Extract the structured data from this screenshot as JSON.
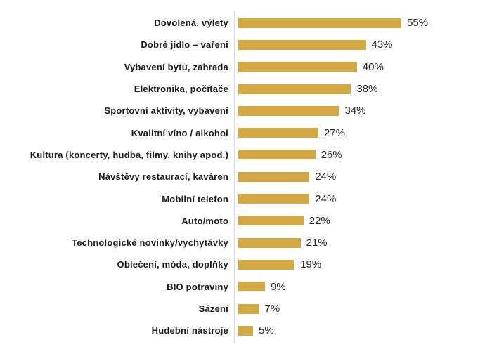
{
  "chart_data": {
    "type": "bar",
    "orientation": "horizontal",
    "title": "",
    "xlabel": "",
    "ylabel": "",
    "grid": false,
    "legend": false,
    "xlim": [
      0,
      60
    ],
    "categories": [
      "Dovolená, výlety",
      "Dobré jídlo – vaření",
      "Vybavení bytu, zahrada",
      "Elektronika, počítače",
      "Sportovní aktivity, vybavení",
      "Kvalitní víno / alkohol",
      "Kultura (koncerty, hudba, filmy, knihy apod.)",
      "Návštěvy restaurací, kaváren",
      "Mobilní telefon",
      "Auto/moto",
      "Technologické novinky/vychytávky",
      "Oblečení, móda, doplňky",
      "BIO potraviny",
      "Sázení",
      "Hudební nástroje"
    ],
    "values": [
      55,
      43,
      40,
      38,
      34,
      27,
      26,
      24,
      24,
      22,
      21,
      19,
      9,
      7,
      5
    ],
    "value_labels": [
      "55%",
      "43%",
      "40%",
      "38%",
      "34%",
      "27%",
      "26%",
      "24%",
      "24%",
      "22%",
      "21%",
      "19%",
      "9%",
      "7%",
      "5%"
    ],
    "bar_color": "#d4a843",
    "axis_line_color": "#d9d9d9",
    "category_label_color": "#1a1a1a",
    "value_label_color": "#262626"
  }
}
